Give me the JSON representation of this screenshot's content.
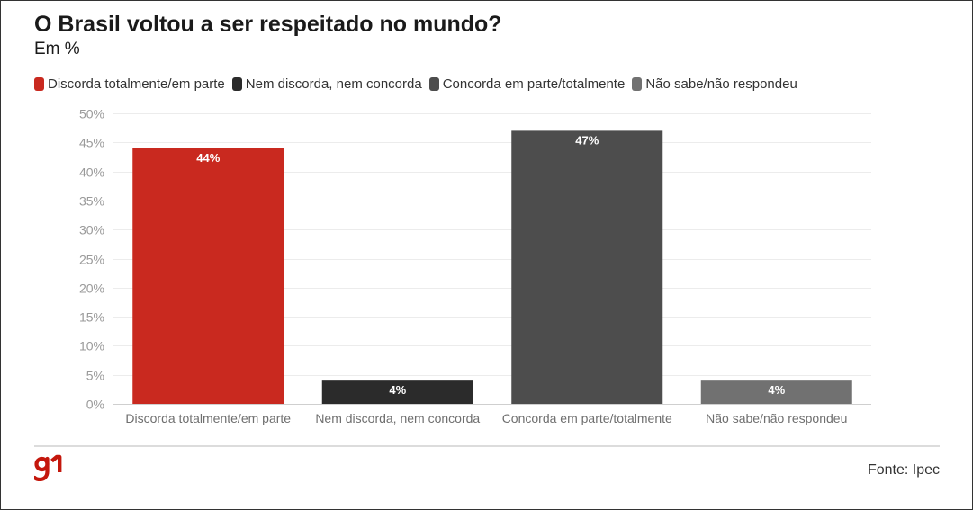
{
  "header": {
    "title": "O Brasil voltou a ser respeitado no mundo?",
    "subtitle": "Em %"
  },
  "legend": {
    "items": [
      {
        "label": "Discorda totalmente/em parte",
        "color": "#c9291f"
      },
      {
        "label": "Nem discorda, nem concorda",
        "color": "#2b2b2b"
      },
      {
        "label": "Concorda em parte/totalmente",
        "color": "#4d4d4d"
      },
      {
        "label": "Não sabe/não respondeu",
        "color": "#717171"
      }
    ]
  },
  "chart_data": {
    "type": "bar",
    "title": "O Brasil voltou a ser respeitado no mundo?",
    "subtitle": "Em %",
    "xlabel": "",
    "ylabel": "",
    "categories": [
      "Discorda totalmente/em parte",
      "Nem discorda, nem concorda",
      "Concorda em parte/totalmente",
      "Não sabe/não respondeu"
    ],
    "values": [
      44,
      4,
      47,
      4
    ],
    "data_labels": [
      "44%",
      "4%",
      "47%",
      "4%"
    ],
    "colors": [
      "#c9291f",
      "#2b2b2b",
      "#4d4d4d",
      "#717171"
    ],
    "ylim": [
      0,
      50
    ],
    "yticks": [
      0,
      5,
      10,
      15,
      20,
      25,
      30,
      35,
      40,
      45,
      50
    ],
    "ytick_labels": [
      "0%",
      "5%",
      "10%",
      "15%",
      "20%",
      "25%",
      "30%",
      "35%",
      "40%",
      "45%",
      "50%"
    ],
    "grid": true,
    "legend_position": "top-left"
  },
  "footer": {
    "logo": "g1",
    "logo_color": "#c4170c",
    "source": "Fonte: Ipec"
  }
}
